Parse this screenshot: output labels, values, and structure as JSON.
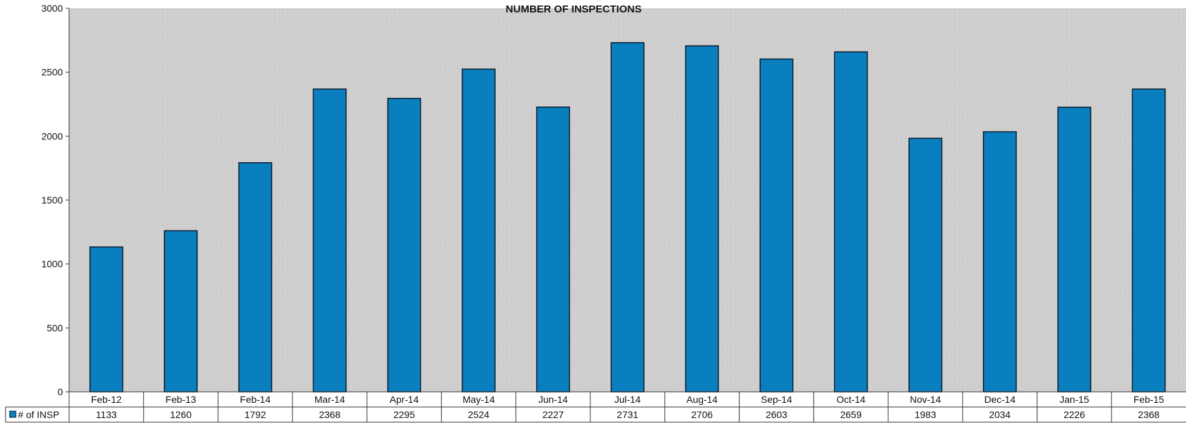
{
  "chart_data": {
    "type": "bar",
    "title": "NUMBER OF INSPECTIONS",
    "categories": [
      "Feb-12",
      "Feb-13",
      "Feb-14",
      "Mar-14",
      "Apr-14",
      "May-14",
      "Jun-14",
      "Jul-14",
      "Aug-14",
      "Sep-14",
      "Oct-14",
      "Nov-14",
      "Dec-14",
      "Jan-15",
      "Feb-15"
    ],
    "series": [
      {
        "name": "# of INSP",
        "color": "#0a7fc0",
        "values": [
          1133,
          1260,
          1792,
          2368,
          2295,
          2524,
          2227,
          2731,
          2706,
          2603,
          2659,
          1983,
          2034,
          2226,
          2368
        ]
      }
    ],
    "yticks": [
      0,
      500,
      1000,
      1500,
      2000,
      2500,
      3000
    ],
    "ylim": [
      0,
      3000
    ],
    "grid": false,
    "legend": "data-table-left",
    "data_table": true
  }
}
